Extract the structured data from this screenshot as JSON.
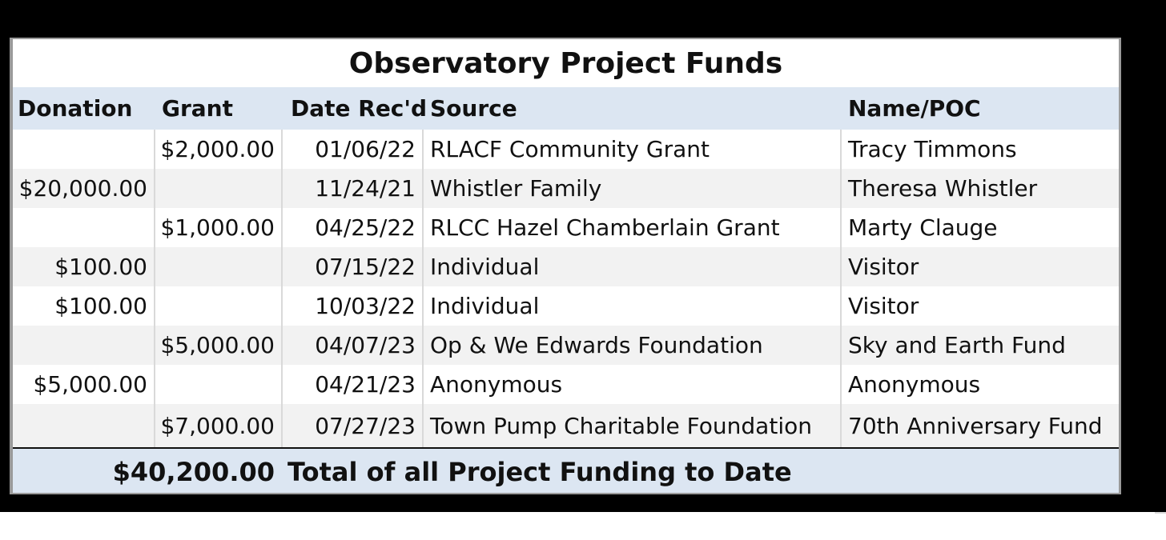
{
  "title": "Observatory Project Funds",
  "headers": {
    "donation": "Donation",
    "grant": "Grant",
    "date": "Date Rec'd",
    "source": "Source",
    "name": "Name/POC"
  },
  "rows": [
    {
      "donation": "",
      "grant": "$2,000.00",
      "date": "01/06/22",
      "source": "RLACF Community Grant",
      "name": "Tracy Timmons"
    },
    {
      "donation": "$20,000.00",
      "grant": "",
      "date": "11/24/21",
      "source": "Whistler Family",
      "name": "Theresa Whistler"
    },
    {
      "donation": "",
      "grant": "$1,000.00",
      "date": "04/25/22",
      "source": "RLCC Hazel Chamberlain Grant",
      "name": "Marty Clauge"
    },
    {
      "donation": "$100.00",
      "grant": "",
      "date": "07/15/22",
      "source": "Individual",
      "name": "Visitor"
    },
    {
      "donation": "$100.00",
      "grant": "",
      "date": "10/03/22",
      "source": "Individual",
      "name": "Visitor"
    },
    {
      "donation": "",
      "grant": "$5,000.00",
      "date": "04/07/23",
      "source": "Op & We Edwards Foundation",
      "name": "Sky and Earth Fund"
    },
    {
      "donation": "$5,000.00",
      "grant": "",
      "date": "04/21/23",
      "source": "Anonymous",
      "name": "Anonymous"
    },
    {
      "donation": "",
      "grant": "$7,000.00",
      "date": "07/27/23",
      "source": "Town Pump Charitable Foundation",
      "name": "70th Anniversary Fund"
    }
  ],
  "total": {
    "amount": "$40,200.00",
    "label": "Total of all Project Funding to Date"
  },
  "colors": {
    "header_fill": "#dce6f2",
    "alt_row_fill": "#f2f2f2",
    "frame": "#000000"
  }
}
